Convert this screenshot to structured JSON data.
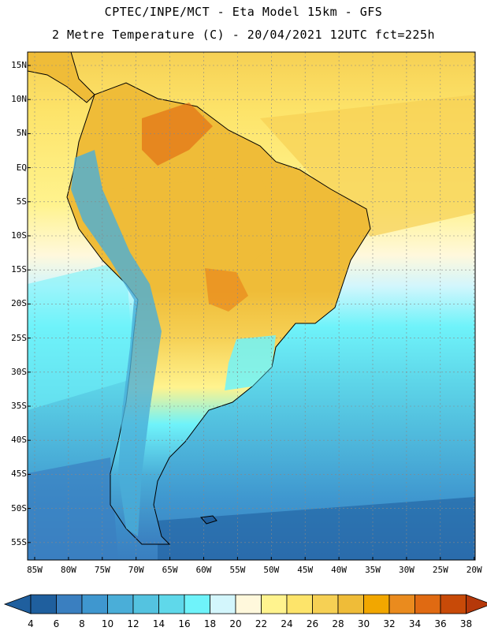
{
  "header": {
    "line1": "CPTEC/INPE/MCT -  Eta Model 15km - GFS",
    "line2": "2 Metre Temperature (C) - 20/04/2021 12UTC fct=225h"
  },
  "map": {
    "lat_labels": [
      "15N",
      "10N",
      "5N",
      "EQ",
      "5S",
      "10S",
      "15S",
      "20S",
      "25S",
      "30S",
      "35S",
      "40S",
      "45S",
      "50S",
      "55S"
    ],
    "lon_labels": [
      "85W",
      "80W",
      "75W",
      "70W",
      "65W",
      "60W",
      "55W",
      "50W",
      "45W",
      "40W",
      "35W",
      "30W",
      "25W",
      "20W"
    ]
  },
  "colorbar": {
    "labels": [
      "4",
      "6",
      "8",
      "10",
      "12",
      "14",
      "16",
      "18",
      "20",
      "22",
      "24",
      "26",
      "28",
      "30",
      "32",
      "34",
      "36",
      "38"
    ],
    "colors": [
      "#1f5f9e",
      "#3a7fc0",
      "#3f97cf",
      "#4aaed8",
      "#54c3e0",
      "#5fd8ea",
      "#6ff3fa",
      "#d3f6fc",
      "#fff8dc",
      "#fff38e",
      "#fde46a",
      "#f6d054",
      "#efbc38",
      "#f2a700",
      "#ea8b1e",
      "#e06a12",
      "#c84a08",
      "#b5380a"
    ]
  }
}
